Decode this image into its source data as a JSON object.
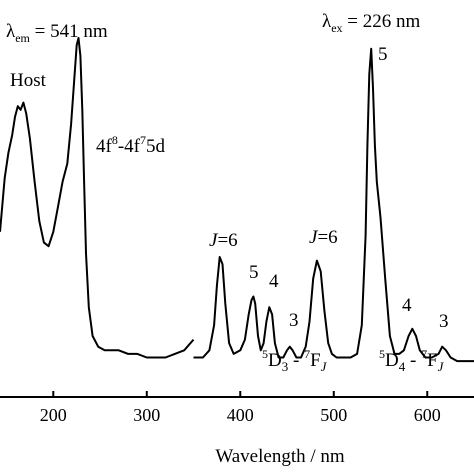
{
  "chart_data": {
    "type": "line",
    "xlabel": "Wavelength / nm",
    "ylabel": "",
    "xlim": [
      143,
      650
    ],
    "ylim": [
      0,
      1.05
    ],
    "xticks": [
      200,
      300,
      400,
      500,
      600
    ],
    "grid": false,
    "series": [
      {
        "x": [
          143,
          148,
          152,
          156,
          159,
          162,
          165,
          168,
          171,
          175,
          180,
          185,
          190,
          195,
          200,
          205,
          210,
          215,
          219,
          222,
          225,
          227,
          229,
          231,
          233,
          235,
          238,
          242,
          248,
          255,
          262,
          270,
          280,
          290,
          300,
          310,
          320,
          330,
          340,
          350
        ],
        "y": [
          0.46,
          0.61,
          0.68,
          0.73,
          0.78,
          0.81,
          0.8,
          0.82,
          0.79,
          0.72,
          0.6,
          0.49,
          0.43,
          0.42,
          0.46,
          0.53,
          0.6,
          0.65,
          0.76,
          0.87,
          0.98,
          1.0,
          0.95,
          0.8,
          0.6,
          0.4,
          0.25,
          0.17,
          0.14,
          0.13,
          0.13,
          0.13,
          0.12,
          0.12,
          0.11,
          0.11,
          0.11,
          0.12,
          0.13,
          0.16
        ]
      },
      {
        "x": [
          350,
          360,
          367,
          372,
          375,
          378,
          381,
          384,
          388,
          393,
          400,
          405,
          409,
          412,
          414,
          416,
          419,
          422,
          425,
          428,
          431,
          434,
          437,
          441,
          446,
          450,
          453,
          456,
          460,
          465,
          470,
          474,
          478,
          482,
          486,
          490,
          494,
          498,
          503,
          510,
          518,
          525,
          530,
          534,
          536,
          538,
          540,
          542,
          544,
          546,
          550,
          555,
          560,
          565,
          570,
          575,
          580,
          584,
          588,
          592,
          598,
          605,
          612,
          616,
          620,
          625,
          632,
          640,
          650
        ],
        "y": [
          0.11,
          0.11,
          0.13,
          0.2,
          0.31,
          0.39,
          0.37,
          0.26,
          0.15,
          0.12,
          0.13,
          0.16,
          0.23,
          0.27,
          0.28,
          0.26,
          0.17,
          0.13,
          0.15,
          0.21,
          0.25,
          0.23,
          0.15,
          0.11,
          0.11,
          0.13,
          0.14,
          0.13,
          0.11,
          0.11,
          0.14,
          0.21,
          0.33,
          0.38,
          0.35,
          0.24,
          0.15,
          0.12,
          0.11,
          0.11,
          0.11,
          0.12,
          0.2,
          0.45,
          0.7,
          0.9,
          0.97,
          0.86,
          0.7,
          0.6,
          0.5,
          0.33,
          0.17,
          0.12,
          0.12,
          0.13,
          0.17,
          0.19,
          0.17,
          0.13,
          0.11,
          0.11,
          0.12,
          0.14,
          0.13,
          0.11,
          0.1,
          0.1,
          0.1
        ]
      }
    ],
    "annotations": {
      "lambda_em_symbol": "λ",
      "lambda_em_sub": "em",
      "lambda_em_value": " = 541 nm",
      "lambda_ex_symbol": "λ",
      "lambda_ex_sub": "ex",
      "lambda_ex_value": " = 226 nm",
      "host": "Host",
      "transition_base": "4f",
      "transition_exp1": "8",
      "transition_mid": "-4f",
      "transition_exp2": "7",
      "transition_end": "5d",
      "j_italic_1": "J",
      "j_eq6_1": "=6",
      "j_italic_2": "J",
      "j_eq6_2": "=6",
      "peak_5_small": "5",
      "peak_4_small": "4",
      "peak_3_small": "3",
      "peak_5_big": "5",
      "peak_4_right": "4",
      "peak_3_right": "3",
      "d3_sup": "5",
      "d3_main": "D",
      "d3_sub": "3",
      "d3_dash": " - ",
      "d3_f_sup": "7",
      "d3_f": "F",
      "d3_j": "J",
      "d4_sup": "5",
      "d4_main": "D",
      "d4_sub": "4",
      "d4_dash": " - ",
      "d4_f_sup": "7",
      "d4_f": "F",
      "d4_j": "J"
    }
  }
}
